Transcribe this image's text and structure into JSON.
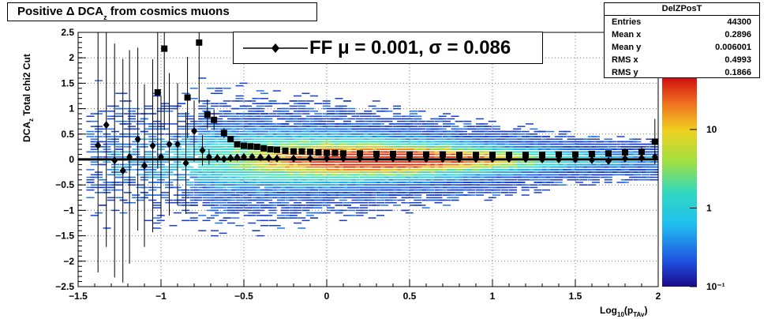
{
  "title": {
    "prefix": "Positive Δ DCA",
    "sub": "z",
    "suffix": " from cosmics muons"
  },
  "fit_label": {
    "prefix": "FF μ =  0.001, σ =   0.086"
  },
  "stats": {
    "title": "DelZPosT",
    "rows": [
      {
        "label": "Entries",
        "value": "44300"
      },
      {
        "label": "Mean x",
        "value": "0.2896"
      },
      {
        "label": "Mean y",
        "value": "0.006001"
      },
      {
        "label": "RMS x",
        "value": "0.4993"
      },
      {
        "label": "RMS y",
        "value": "0.1866"
      }
    ]
  },
  "chart_data": {
    "type": "scatter",
    "title": "Positive Δ DCA_z from cosmics muons",
    "xlabel": "Log10(pTAv)",
    "ylabel_parts": [
      "DCA",
      "z",
      "Total chi2 Cut"
    ],
    "xlim": [
      -1.5,
      2.0
    ],
    "ylim": [
      -2.5,
      2.5
    ],
    "xticks": [
      -1.5,
      -1,
      -0.5,
      0,
      0.5,
      1,
      1.5,
      2
    ],
    "xtick_labels": [
      "−1.5",
      "−1",
      "−0.5",
      "0",
      "0.5",
      "1",
      "1.5",
      "2"
    ],
    "yticks": [
      -2.5,
      -2,
      -1.5,
      -1,
      -0.5,
      0,
      0.5,
      1,
      1.5,
      2,
      2.5
    ],
    "ytick_labels": [
      "−2.5",
      "−2",
      "−1.5",
      "−1",
      "−0.5",
      "0",
      "0.5",
      "1",
      "1.5",
      "2",
      "2.5"
    ],
    "grid": true,
    "colz_labels": [
      {
        "value": 10,
        "label": "10"
      },
      {
        "value": 1,
        "label": "1"
      },
      {
        "value": 0.1,
        "label": "10⁻¹"
      }
    ],
    "fit_line_y": 0.001,
    "series": [
      {
        "marker": "square",
        "x": [
          -1.02,
          -0.98,
          -0.84,
          -0.77,
          -0.72,
          -0.68,
          -0.62,
          -0.58,
          -0.54,
          -0.5,
          -0.46,
          -0.42,
          -0.38,
          -0.34,
          -0.3,
          -0.25,
          -0.2,
          -0.15,
          -0.1,
          -0.05,
          0.0,
          0.05,
          0.1,
          0.2,
          0.3,
          0.4,
          0.5,
          0.6,
          0.7,
          0.8,
          0.9,
          1.0,
          1.1,
          1.2,
          1.3,
          1.4,
          1.5,
          1.6,
          1.7,
          1.8,
          1.9,
          1.98
        ],
        "y": [
          1.32,
          2.18,
          1.22,
          2.3,
          0.88,
          0.78,
          0.52,
          0.4,
          0.3,
          0.27,
          0.26,
          0.25,
          0.22,
          0.2,
          0.19,
          0.17,
          0.16,
          0.16,
          0.15,
          0.14,
          0.13,
          0.13,
          0.12,
          0.12,
          0.11,
          0.11,
          0.1,
          0.1,
          0.1,
          0.09,
          0.09,
          0.09,
          0.09,
          0.09,
          0.09,
          0.1,
          0.1,
          0.11,
          0.12,
          0.14,
          0.15,
          0.35
        ],
        "err": [
          1.5,
          1.6,
          0.8,
          1.2,
          0.3,
          0.2,
          0.1,
          0.06,
          0.04,
          0.03,
          0.02,
          0.02,
          0.02,
          0.02,
          0.02,
          0.02,
          0.02,
          0.02,
          0.02,
          0.02,
          0.02,
          0.02,
          0.02,
          0.02,
          0.02,
          0.02,
          0.02,
          0.02,
          0.02,
          0.02,
          0.02,
          0.02,
          0.02,
          0.02,
          0.02,
          0.03,
          0.04,
          0.05,
          0.06,
          0.08,
          0.1,
          0.45
        ]
      },
      {
        "marker": "diamond",
        "x": [
          -1.38,
          -1.33,
          -1.28,
          -1.23,
          -1.19,
          -1.14,
          -1.1,
          -1.05,
          -1.0,
          -0.95,
          -0.9,
          -0.85,
          -0.8,
          -0.75,
          -0.71,
          -0.66,
          -0.62,
          -0.58,
          -0.54,
          -0.5,
          -0.45,
          -0.4,
          -0.35,
          -0.3,
          -0.2,
          -0.1,
          0.0,
          0.1,
          0.2,
          0.3,
          0.4,
          0.5,
          0.6,
          0.7,
          0.8,
          0.9,
          1.0,
          1.1,
          1.2,
          1.3,
          1.4,
          1.5,
          1.6,
          1.7,
          1.8,
          1.9,
          1.98
        ],
        "y": [
          0.28,
          0.68,
          -0.02,
          -0.22,
          0.05,
          0.4,
          -0.12,
          0.27,
          0.05,
          0.3,
          0.3,
          -0.07,
          0.56,
          0.18,
          0.05,
          0.03,
          0.01,
          0.03,
          0.04,
          0.05,
          0.05,
          0.04,
          0.03,
          0.02,
          0.02,
          0.02,
          0.02,
          0.02,
          0.02,
          0.02,
          0.02,
          0.02,
          0.01,
          0.01,
          0.01,
          0.01,
          0.01,
          0.01,
          0.01,
          0.0,
          0.0,
          0.0,
          -0.01,
          -0.03,
          0.02,
          0.03,
          0.05
        ],
        "err": [
          2.5,
          2.4,
          2.3,
          2.2,
          2.1,
          1.8,
          1.6,
          1.7,
          1.2,
          1.4,
          1.2,
          1.0,
          0.6,
          0.3,
          0.15,
          0.08,
          0.05,
          0.04,
          0.03,
          0.03,
          0.02,
          0.02,
          0.02,
          0.02,
          0.02,
          0.02,
          0.02,
          0.02,
          0.02,
          0.02,
          0.02,
          0.02,
          0.02,
          0.02,
          0.02,
          0.02,
          0.02,
          0.02,
          0.02,
          0.02,
          0.02,
          0.03,
          0.03,
          0.04,
          0.05,
          0.08,
          0.12
        ]
      }
    ]
  }
}
